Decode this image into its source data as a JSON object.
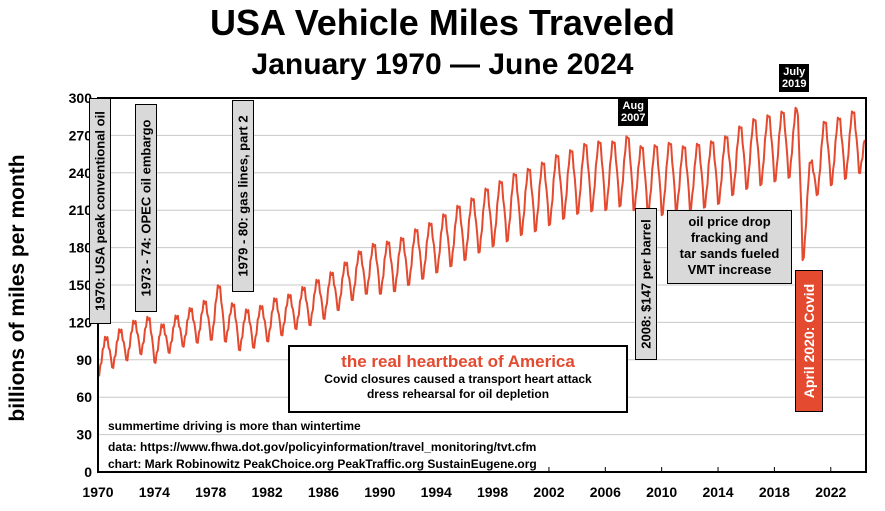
{
  "chart_data": {
    "type": "line",
    "title": "USA Vehicle Miles Traveled",
    "subtitle": "January 1970 — June 2024",
    "ylabel": "billions of miles per month",
    "xlabel": "",
    "xlim": [
      1970,
      2024.5
    ],
    "ylim": [
      0,
      300
    ],
    "yticks": [
      "0",
      "30",
      "60",
      "90",
      "120",
      "150",
      "180",
      "210",
      "240",
      "270",
      "300"
    ],
    "xticks": [
      "1970",
      "1974",
      "1978",
      "1982",
      "1986",
      "1990",
      "1994",
      "1998",
      "2002",
      "2006",
      "2010",
      "2014",
      "2018",
      "2022"
    ],
    "line_color": "#e34a2f",
    "grid": "horizontal",
    "series": [
      {
        "name": "",
        "seasonal_pattern": "monthly values peak in summer and dip in winter",
        "annual_points": {
          "x": [
            1970,
            1971,
            1972,
            1973,
            1974,
            1975,
            1976,
            1977,
            1978,
            1979,
            1980,
            1981,
            1982,
            1983,
            1984,
            1985,
            1986,
            1987,
            1988,
            1989,
            1990,
            1991,
            1992,
            1993,
            1994,
            1995,
            1996,
            1997,
            1998,
            1999,
            2000,
            2001,
            2002,
            2003,
            2004,
            2005,
            2006,
            2007,
            2008,
            2009,
            2010,
            2011,
            2012,
            2013,
            2014,
            2015,
            2016,
            2017,
            2018,
            2019,
            2020,
            2021,
            2022,
            2023,
            2024
          ],
          "summer_peak": [
            108,
            114,
            121,
            124,
            118,
            125,
            131,
            137,
            150,
            135,
            130,
            133,
            139,
            142,
            148,
            154,
            160,
            168,
            177,
            183,
            185,
            188,
            195,
            200,
            207,
            214,
            220,
            228,
            234,
            240,
            244,
            249,
            255,
            259,
            264,
            266,
            266,
            270,
            262,
            263,
            265,
            262,
            264,
            266,
            270,
            278,
            284,
            287,
            290,
            293,
            250,
            282,
            285,
            290,
            275
          ],
          "winter_low": [
            78,
            84,
            90,
            95,
            88,
            96,
            101,
            104,
            106,
            105,
            98,
            100,
            105,
            110,
            115,
            118,
            123,
            130,
            138,
            143,
            143,
            145,
            150,
            155,
            160,
            165,
            170,
            176,
            181,
            185,
            190,
            193,
            198,
            203,
            207,
            209,
            210,
            213,
            210,
            207,
            206,
            209,
            210,
            212,
            215,
            222,
            227,
            230,
            233,
            236,
            170,
            222,
            230,
            235,
            240
          ]
        }
      }
    ],
    "annotations": [
      "1970: USA peak conventional oil",
      "1973 - 74:  OPEC oil embargo",
      "1979 - 80: gas lines, part 2",
      "2008:  $147 per barrel",
      "April 2020: Covid"
    ]
  },
  "labels": {
    "aug2007_line1": "Aug",
    "aug2007_line2": "2007",
    "july2019_line1": "July",
    "july2019_line2": "2019",
    "oil_drop_line1": "oil price drop",
    "oil_drop_line2": "fracking and",
    "oil_drop_line3": "tar sands fueled",
    "oil_drop_line4": "VMT increase",
    "heart_title": "the real heartbeat of America",
    "heart_line1": "Covid closures caused a transport heart attack",
    "heart_line2": "dress rehearsal for oil depletion",
    "summer_note": "summertime driving is more than wintertime",
    "data_source": "data:  https://www.fhwa.dot.gov/policyinformation/travel_monitoring/tvt.cfm",
    "credit": "chart: Mark Robinowitz  PeakChoice.org  PeakTraffic.org  SustainEugene.org"
  }
}
